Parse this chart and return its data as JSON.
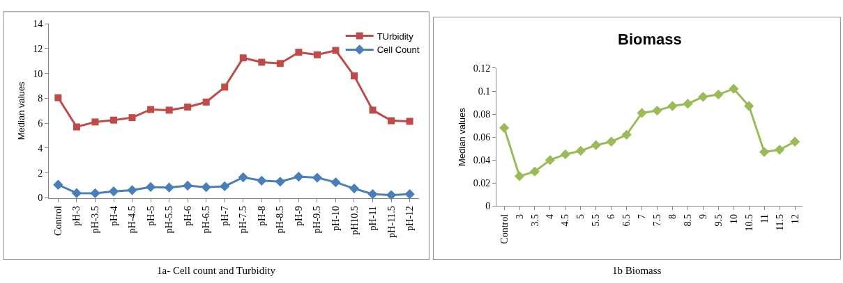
{
  "chart_data": [
    {
      "type": "line",
      "ylabel": "Median values",
      "categories": [
        "Control",
        "pH-3",
        "pH-3.5",
        "pH-4",
        "pH-4.5",
        "pH-5",
        "pH-5.5",
        "pH-6",
        "pH-6.5",
        "pH-7",
        "pH-7.5",
        "pH-8",
        "pH-8.5",
        "pH-9",
        "pH-9.5",
        "pH-10",
        "pH10.5",
        "pH-11",
        "pH-11.5",
        "pH-12"
      ],
      "series": [
        {
          "name": "TUrbidity",
          "color": "#be4b48",
          "marker": "square",
          "values": [
            8.05,
            5.7,
            6.1,
            6.25,
            6.45,
            7.1,
            7.05,
            7.3,
            7.7,
            8.9,
            11.25,
            10.9,
            10.8,
            11.7,
            11.5,
            11.85,
            9.8,
            7.05,
            6.2,
            6.15
          ]
        },
        {
          "name": "Cell Count",
          "color": "#4a7ebb",
          "marker": "diamond",
          "values": [
            1.05,
            0.38,
            0.37,
            0.52,
            0.62,
            0.87,
            0.83,
            0.98,
            0.86,
            0.93,
            1.65,
            1.38,
            1.3,
            1.7,
            1.62,
            1.25,
            0.75,
            0.3,
            0.22,
            0.3
          ]
        }
      ],
      "ylim": [
        0,
        14
      ],
      "yticks": [
        0,
        2,
        4,
        6,
        8,
        10,
        12,
        14
      ],
      "legend": "top right",
      "line_style": "solid",
      "annotations": [
        "1a- Cell count and Turbidity"
      ]
    },
    {
      "type": "line",
      "title": "Biomass",
      "ylabel": "Median values",
      "categories": [
        "Control",
        "3",
        "3.5",
        "4",
        "4.5",
        "5",
        "5.5",
        "6",
        "6.5",
        "7",
        "7.5",
        "8",
        "8.5",
        "9",
        "9.5",
        "10",
        "10.5",
        "11",
        "11.5",
        "12"
      ],
      "series": [
        {
          "color": "#9bbb59",
          "marker": "diamond",
          "values": [
            0.068,
            0.026,
            0.03,
            0.04,
            0.045,
            0.048,
            0.053,
            0.056,
            0.062,
            0.081,
            0.083,
            0.087,
            0.089,
            0.095,
            0.097,
            0.102,
            0.087,
            0.047,
            0.049,
            0.056
          ]
        }
      ],
      "ylim": [
        0,
        0.12
      ],
      "yticks": [
        0,
        0.02,
        0.04,
        0.06,
        0.08,
        0.1,
        0.12
      ],
      "legend": false,
      "line_style": "solid",
      "annotations": [
        "1b Biomass"
      ]
    }
  ]
}
